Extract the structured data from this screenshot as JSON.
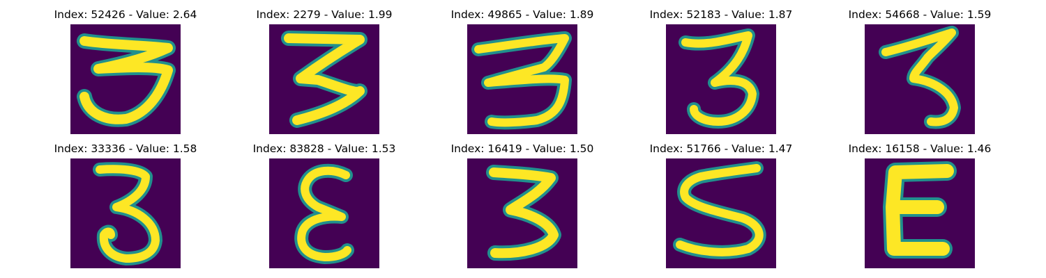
{
  "figure": {
    "panels": [
      {
        "index_label": "Index: 52426",
        "value_label": "Value: 2.64",
        "digit": "three-thick-flat-top-icon"
      },
      {
        "index_label": "Index: 2279",
        "value_label": "Value: 1.99",
        "digit": "three-angular-icon"
      },
      {
        "index_label": "Index: 49865",
        "value_label": "Value: 1.89",
        "digit": "three-wide-icon"
      },
      {
        "index_label": "Index: 52183",
        "value_label": "Value: 1.87",
        "digit": "three-narrow-icon"
      },
      {
        "index_label": "Index: 54668",
        "value_label": "Value: 1.59",
        "digit": "three-slanted-icon"
      },
      {
        "index_label": "Index: 33336",
        "value_label": "Value: 1.58",
        "digit": "three-curled-tail-icon"
      },
      {
        "index_label": "Index: 83828",
        "value_label": "Value: 1.53",
        "digit": "epsilon-like-three-icon"
      },
      {
        "index_label": "Index: 16419",
        "value_label": "Value: 1.50",
        "digit": "three-thick-icon"
      },
      {
        "index_label": "Index: 51766",
        "value_label": "Value: 1.47",
        "digit": "five-like-three-icon"
      },
      {
        "index_label": "Index: 16158",
        "value_label": "Value: 1.46",
        "digit": "blocky-epsilon-icon"
      }
    ],
    "separator": " - ",
    "colors": {
      "background": "#440154",
      "stroke": "#fde725",
      "edge": "#21908d"
    }
  }
}
